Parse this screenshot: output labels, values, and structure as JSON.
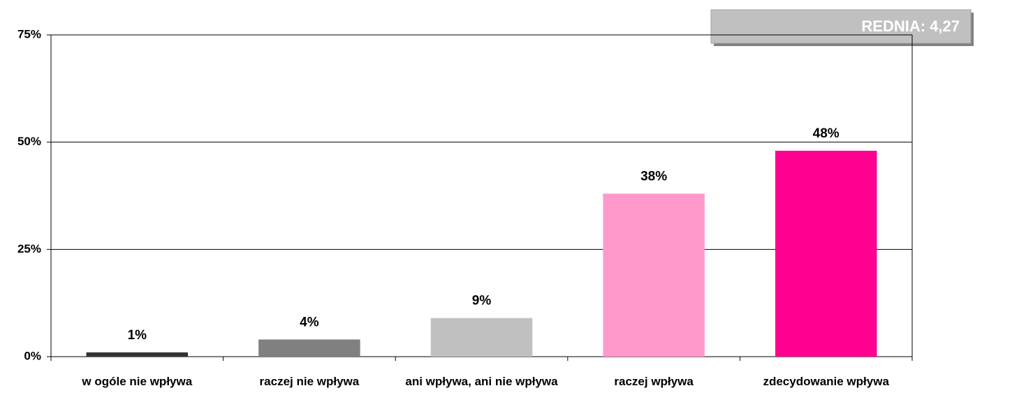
{
  "chart_data": {
    "type": "bar",
    "annotation": "REDNIA: 4,27",
    "categories": [
      "w ogóle nie wpływa",
      "raczej nie wpływa",
      "ani wpływa, ani nie wpływa",
      "raczej wpływa",
      "zdecydowanie wpływa"
    ],
    "values": [
      1,
      4,
      9,
      38,
      48
    ],
    "value_labels": [
      "1%",
      "4%",
      "9%",
      "38%",
      "48%"
    ],
    "colors": [
      "#333333",
      "#808080",
      "#c0c0c0",
      "#ff99cc",
      "#ff0090"
    ],
    "ylim": [
      0,
      75
    ],
    "yticks": [
      {
        "value": 0,
        "label": "0%"
      },
      {
        "value": 25,
        "label": "25%"
      },
      {
        "value": 50,
        "label": "50%"
      },
      {
        "value": 75,
        "label": "75%"
      }
    ],
    "grid": true
  }
}
